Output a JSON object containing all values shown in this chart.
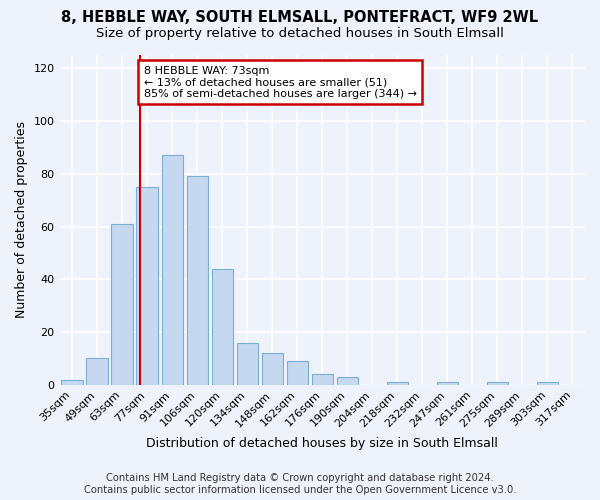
{
  "title_line1": "8, HEBBLE WAY, SOUTH ELMSALL, PONTEFRACT, WF9 2WL",
  "title_line2": "Size of property relative to detached houses in South Elmsall",
  "xlabel": "Distribution of detached houses by size in South Elmsall",
  "ylabel": "Number of detached properties",
  "footer_line1": "Contains HM Land Registry data © Crown copyright and database right 2024.",
  "footer_line2": "Contains public sector information licensed under the Open Government Licence v3.0.",
  "bar_labels": [
    "35sqm",
    "49sqm",
    "63sqm",
    "77sqm",
    "91sqm",
    "106sqm",
    "120sqm",
    "134sqm",
    "148sqm",
    "162sqm",
    "176sqm",
    "190sqm",
    "204sqm",
    "218sqm",
    "232sqm",
    "247sqm",
    "261sqm",
    "275sqm",
    "289sqm",
    "303sqm",
    "317sqm"
  ],
  "bar_values": [
    2,
    10,
    61,
    75,
    87,
    79,
    44,
    16,
    12,
    9,
    4,
    3,
    0,
    1,
    0,
    1,
    0,
    1,
    0,
    1,
    0
  ],
  "bar_color": "#c5d8f0",
  "bar_edge_color": "#7aaed4",
  "ylim": [
    0,
    125
  ],
  "yticks": [
    0,
    20,
    40,
    60,
    80,
    100,
    120
  ],
  "annotation_line1": "8 HEBBLE WAY: 73sqm",
  "annotation_line2": "← 13% of detached houses are smaller (51)",
  "annotation_line3": "85% of semi-detached houses are larger (344) →",
  "vline_x_bar_idx": 2.72,
  "annotation_box_color": "#ffffff",
  "annotation_box_edge": "#cc0000",
  "vline_color": "#cc0000",
  "background_color": "#eef2fa",
  "grid_color": "#ffffff",
  "title_fontsize": 10.5,
  "subtitle_fontsize": 9.5,
  "label_fontsize": 9,
  "tick_fontsize": 8,
  "footer_fontsize": 7.2
}
